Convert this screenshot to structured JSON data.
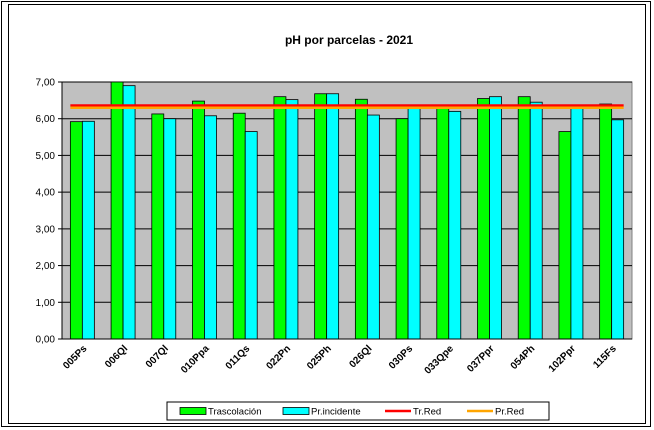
{
  "chart_data": {
    "type": "bar",
    "title": "pH por parcelas - 2021",
    "xlabel": "",
    "ylabel": "",
    "ylim": [
      0,
      7
    ],
    "yticks": [
      "0,00",
      "1,00",
      "2,00",
      "3,00",
      "4,00",
      "5,00",
      "6,00",
      "7,00"
    ],
    "categories": [
      "005Ps",
      "006Ql",
      "007Ql",
      "010Ppa",
      "011Qs",
      "022Pn",
      "025Ph",
      "026Ql",
      "030Ps",
      "033Qpe",
      "037Ppr",
      "054Ph",
      "102Ppr",
      "115Fs"
    ],
    "series": [
      {
        "name": "Trascolación",
        "values": [
          5.92,
          7.0,
          6.13,
          6.48,
          6.15,
          6.6,
          6.68,
          6.53,
          6.0,
          6.35,
          6.55,
          6.6,
          5.65,
          6.4
        ]
      },
      {
        "name": "Pr.incidente",
        "values": [
          5.93,
          6.9,
          6.0,
          6.08,
          5.65,
          6.52,
          6.68,
          6.1,
          6.28,
          6.2,
          6.6,
          6.45,
          6.3,
          5.97
        ]
      }
    ],
    "lines": [
      {
        "name": "Tr.Red",
        "value": 6.36
      },
      {
        "name": "Pr.Red",
        "value": 6.3
      }
    ],
    "grid": true,
    "legend": "bottom"
  },
  "colors": {
    "trascolacion": "#00ff00",
    "pr_incidente": "#00ffff",
    "tr_red": "#ff0000",
    "pr_red": "#ffa500",
    "plot_bg": "#c0c0c0"
  }
}
